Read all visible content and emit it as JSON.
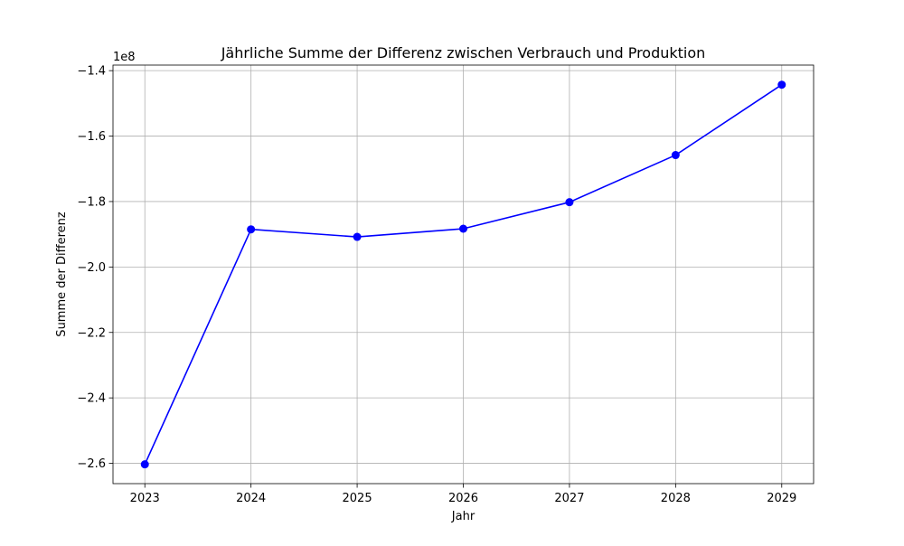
{
  "chart_data": {
    "type": "line",
    "title": "Jährliche Summe der Differenz zwischen Verbrauch und Produktion",
    "xlabel": "Jahr",
    "ylabel": "Summe der Differenz",
    "y_offset_label": "1e8",
    "x": [
      2023,
      2024,
      2025,
      2026,
      2027,
      2028,
      2029
    ],
    "series": [
      {
        "values": [
          -260300000,
          -188500000,
          -190800000,
          -188300000,
          -180200000,
          -165800000,
          -144300000
        ],
        "color": "#0000ff",
        "marker": "circle"
      }
    ],
    "x_ticks": [
      "2023",
      "2024",
      "2025",
      "2026",
      "2027",
      "2028",
      "2029"
    ],
    "y_ticks": [
      {
        "value": -260000000,
        "label": "−2.6"
      },
      {
        "value": -240000000,
        "label": "−2.4"
      },
      {
        "value": -220000000,
        "label": "−2.2"
      },
      {
        "value": -200000000,
        "label": "−2.0"
      },
      {
        "value": -180000000,
        "label": "−1.8"
      },
      {
        "value": -160000000,
        "label": "−1.6"
      },
      {
        "value": -140000000,
        "label": "−1.4"
      }
    ],
    "xlim": [
      2022.7,
      2029.3
    ],
    "ylim": [
      -266200000,
      -138300000
    ],
    "grid": true,
    "grid_color": "#b0b0b0"
  }
}
